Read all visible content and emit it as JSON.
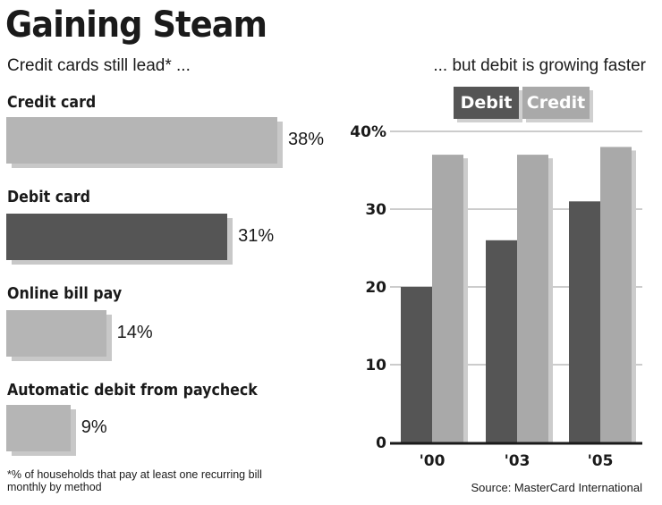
{
  "title": "Gaining Steam",
  "left_subtitle": "Credit cards still lead* ...",
  "right_subtitle": "... but debit is growing faster",
  "footnote": "*% of households that pay at least one recurring bill monthly by method",
  "source": "Source: MasterCard International",
  "colors": {
    "debit": "#555555",
    "credit": "#a9a9a9",
    "light_bar": "#b5b5b5",
    "shadow": "#cccccc"
  },
  "chart_data": [
    {
      "type": "bar",
      "orientation": "horizontal",
      "title": "Credit cards still lead* ...",
      "categories": [
        "Credit card",
        "Debit card",
        "Online bill pay",
        "Automatic debit from paycheck"
      ],
      "values": [
        38,
        31,
        14,
        9
      ],
      "value_labels": [
        "38%",
        "31%",
        "14%",
        "9%"
      ],
      "unit": "%"
    },
    {
      "type": "bar",
      "orientation": "vertical",
      "title": "... but debit is growing faster",
      "categories": [
        "'00",
        "'03",
        "'05"
      ],
      "series": [
        {
          "name": "Debit",
          "values": [
            20,
            26,
            31
          ]
        },
        {
          "name": "Credit",
          "values": [
            37,
            37,
            38
          ]
        }
      ],
      "ylim": [
        0,
        40
      ],
      "yticks": [
        "0",
        "10",
        "20",
        "30",
        "40%"
      ],
      "grid": true,
      "legend": "top"
    }
  ]
}
